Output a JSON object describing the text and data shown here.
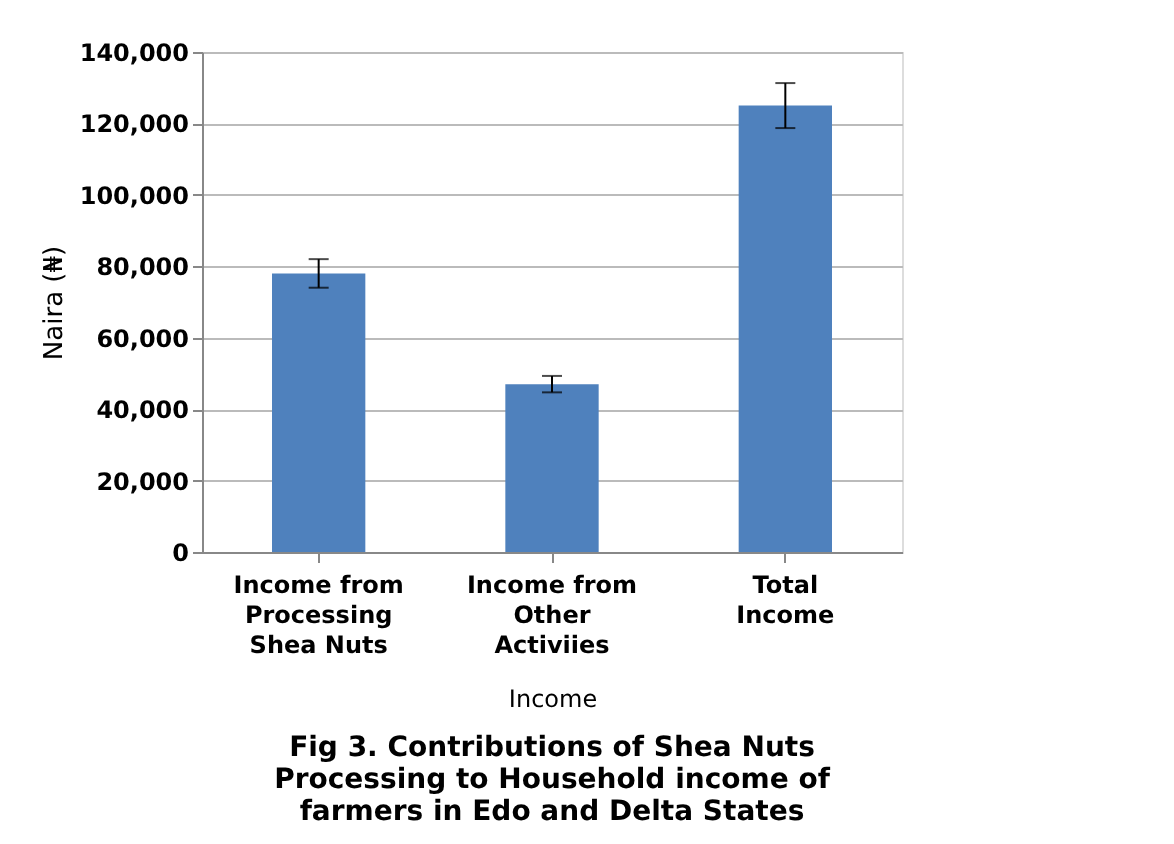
{
  "chart_data": {
    "type": "bar",
    "title": "Fig 3. Contributions of Shea Nuts Processing to Household income of farmers in Edo and Delta States",
    "xlabel": "Income",
    "ylabel": "Naira (₦)",
    "categories": [
      "Income from Processing Shea Nuts",
      "Income from Other Activiies",
      "Total Income"
    ],
    "values": [
      78000,
      47000,
      125000
    ],
    "errors": [
      4000,
      2300,
      6300
    ],
    "color": "#4f81bd",
    "ylim": [
      0,
      140000
    ],
    "yticks": [
      {
        "value": 0,
        "label": "0"
      },
      {
        "value": 20000,
        "label": "20,000"
      },
      {
        "value": 40000,
        "label": "40,000"
      },
      {
        "value": 60000,
        "label": "60,000"
      },
      {
        "value": 80000,
        "label": "80,000"
      },
      {
        "value": 100000,
        "label": "100,000"
      },
      {
        "value": 120000,
        "label": "120,000"
      },
      {
        "value": 140000,
        "label": "140,000"
      }
    ],
    "grid": "y"
  }
}
